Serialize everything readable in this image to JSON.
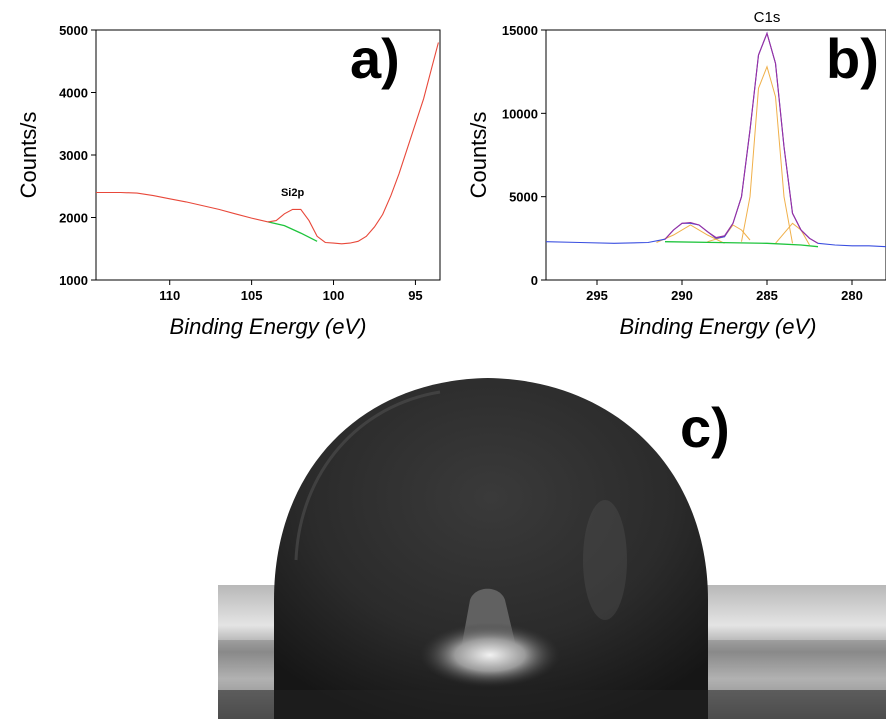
{
  "colors": {
    "spectrum_a": "#e8483a",
    "baseline": "#1ec43c",
    "spectrum_b": "#3a4fe0",
    "envelope_b": "#9b2fa0",
    "components_b": "#f0b04a"
  },
  "panels": {
    "a": {
      "label": "a)"
    },
    "b": {
      "label": "b)"
    },
    "c": {
      "label": "c)",
      "description_icon": "water-droplet-photo"
    }
  },
  "chart_data": [
    {
      "type": "line",
      "panel": "a)",
      "xlabel": "Binding Energy (eV)",
      "ylabel": "Counts/s",
      "xlim": [
        114.5,
        93.5
      ],
      "ylim": [
        1000,
        5000
      ],
      "x_reversed": true,
      "xticks": [
        110,
        105,
        100,
        95
      ],
      "yticks": [
        1000,
        2000,
        3000,
        4000,
        5000
      ],
      "annotations": [
        {
          "text": "Si2p",
          "x": 102.5,
          "y": 2250
        }
      ],
      "series": [
        {
          "role": "spectrum",
          "x": [
            114.5,
            113,
            112,
            111,
            110,
            109,
            108,
            107,
            106,
            105,
            104,
            103.5,
            103,
            102.5,
            102,
            101.5,
            101,
            100.5,
            100,
            99.5,
            99,
            98.5,
            98,
            97.5,
            97,
            96.5,
            96,
            95.5,
            95,
            94.5,
            94,
            93.6
          ],
          "y": [
            2400,
            2400,
            2390,
            2350,
            2300,
            2250,
            2190,
            2130,
            2060,
            1990,
            1930,
            1950,
            2060,
            2130,
            2130,
            1950,
            1700,
            1600,
            1590,
            1580,
            1590,
            1620,
            1700,
            1850,
            2050,
            2350,
            2700,
            3100,
            3500,
            3900,
            4400,
            4800
          ]
        },
        {
          "role": "baseline",
          "x": [
            104,
            103,
            102,
            101
          ],
          "y": [
            1930,
            1870,
            1750,
            1620
          ]
        }
      ]
    },
    {
      "type": "line",
      "panel": "b)",
      "xlabel": "Binding Energy (eV)",
      "ylabel": "Counts/s",
      "xlim": [
        298,
        278
      ],
      "ylim": [
        0,
        15000
      ],
      "x_reversed": true,
      "xticks": [
        295,
        290,
        285,
        280
      ],
      "yticks": [
        0,
        5000,
        10000,
        15000
      ],
      "annotations": [
        {
          "text": "C1s",
          "x": 285,
          "y": 15000
        }
      ],
      "series": [
        {
          "role": "spectrum",
          "x": [
            298,
            296,
            294,
            292,
            291,
            290.5,
            290,
            289.5,
            289,
            288.5,
            288,
            287.5,
            287,
            286.5,
            286,
            285.5,
            285,
            284.5,
            284,
            283.5,
            283,
            282.5,
            282,
            281,
            280,
            279,
            278
          ],
          "y": [
            2300,
            2250,
            2200,
            2250,
            2450,
            3000,
            3400,
            3400,
            3300,
            2900,
            2500,
            2600,
            3400,
            5000,
            9000,
            13500,
            14800,
            13000,
            8000,
            4000,
            3000,
            2500,
            2200,
            2100,
            2050,
            2050,
            2000
          ]
        },
        {
          "role": "envelope",
          "x": [
            291,
            290.5,
            290,
            289.5,
            289,
            288.5,
            288,
            287.5,
            287,
            286.5,
            286,
            285.5,
            285,
            284.5,
            284,
            283.5,
            283,
            282.5,
            282
          ],
          "y": [
            2450,
            3000,
            3400,
            3450,
            3300,
            2900,
            2550,
            2650,
            3400,
            5000,
            9000,
            13500,
            14800,
            13000,
            8000,
            4000,
            3000,
            2500,
            2200
          ]
        },
        {
          "role": "component",
          "x": [
            291.5,
            290.5,
            289.5,
            288.5,
            287.5
          ],
          "y": [
            2250,
            2700,
            3300,
            2700,
            2200
          ]
        },
        {
          "role": "component",
          "x": [
            288.5,
            287.5,
            287,
            286.5,
            286
          ],
          "y": [
            2300,
            2600,
            3300,
            3000,
            2400
          ]
        },
        {
          "role": "component",
          "x": [
            286.5,
            286,
            285.5,
            285,
            284.5,
            284,
            283.5
          ],
          "y": [
            2300,
            5000,
            11500,
            12800,
            11000,
            5000,
            2200
          ]
        },
        {
          "role": "component",
          "x": [
            284.5,
            284,
            283.5,
            283,
            282.5
          ],
          "y": [
            2200,
            2800,
            3400,
            3000,
            2100
          ]
        },
        {
          "role": "baseline",
          "x": [
            291,
            288,
            285,
            283,
            282
          ],
          "y": [
            2300,
            2250,
            2200,
            2100,
            2000
          ]
        }
      ]
    }
  ]
}
